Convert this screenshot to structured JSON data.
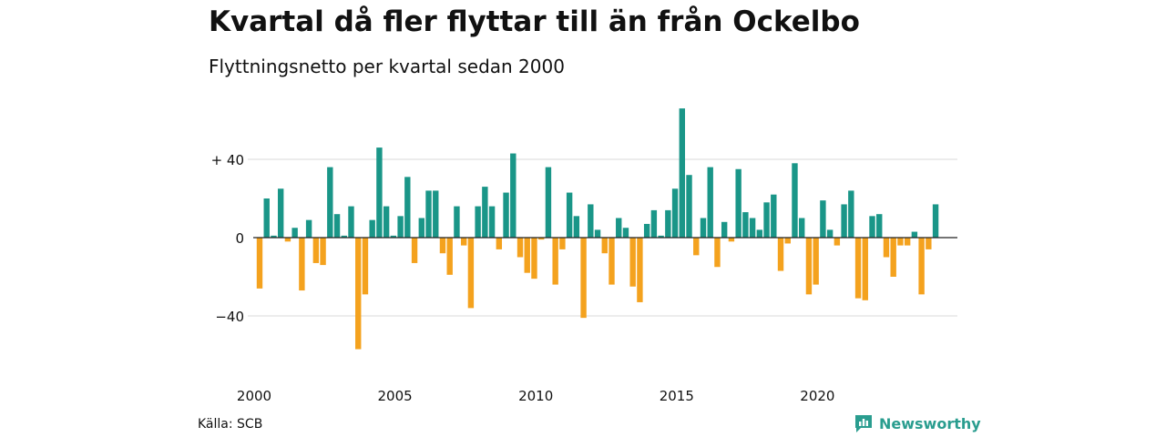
{
  "title": "Kvartal då fler flyttar till än från Ockelbo",
  "subtitle": "Flyttningsnetto per kvartal sedan 2000",
  "source": "Källa: SCB",
  "brand": {
    "name": "Newsworthy",
    "logo_icon": "chart-bubble-icon"
  },
  "colors": {
    "positive": "#1a9688",
    "negative": "#f4a21e",
    "grid": "#d9d9d9",
    "zero_line": "#222222",
    "brand": "#2a9d8f"
  },
  "chart_data": {
    "type": "bar",
    "start": "2000 Q1",
    "y_ticks": [
      40,
      0,
      -40
    ],
    "y_tick_labels": [
      "+ 40",
      "0",
      "−40"
    ],
    "x_tick_labels": [
      "2000",
      "2005",
      "2010",
      "2015",
      "2020"
    ],
    "x_tick_years": [
      2000,
      2005,
      2010,
      2015,
      2020
    ],
    "ylim": [
      -60,
      70
    ],
    "grid": true,
    "values": [
      -26,
      20,
      1,
      25,
      -2,
      5,
      -27,
      9,
      -13,
      -14,
      36,
      12,
      1,
      16,
      -57,
      -29,
      9,
      46,
      16,
      1,
      11,
      31,
      -13,
      10,
      24,
      24,
      -8,
      -19,
      16,
      -4,
      -36,
      16,
      26,
      16,
      -6,
      23,
      43,
      -10,
      -18,
      -21,
      -1,
      36,
      -24,
      -6,
      23,
      11,
      -41,
      17,
      4,
      -8,
      -24,
      10,
      5,
      -25,
      -33,
      7,
      14,
      1,
      14,
      25,
      66,
      32,
      -9,
      10,
      36,
      -15,
      8,
      -2,
      35,
      13,
      10,
      4,
      18,
      22,
      -17,
      -3,
      38,
      10,
      -29,
      -24,
      19,
      4,
      -4,
      17,
      24,
      -31,
      -32,
      11,
      12,
      -10,
      -20,
      -4,
      -4,
      3,
      -29,
      -6,
      17
    ]
  }
}
